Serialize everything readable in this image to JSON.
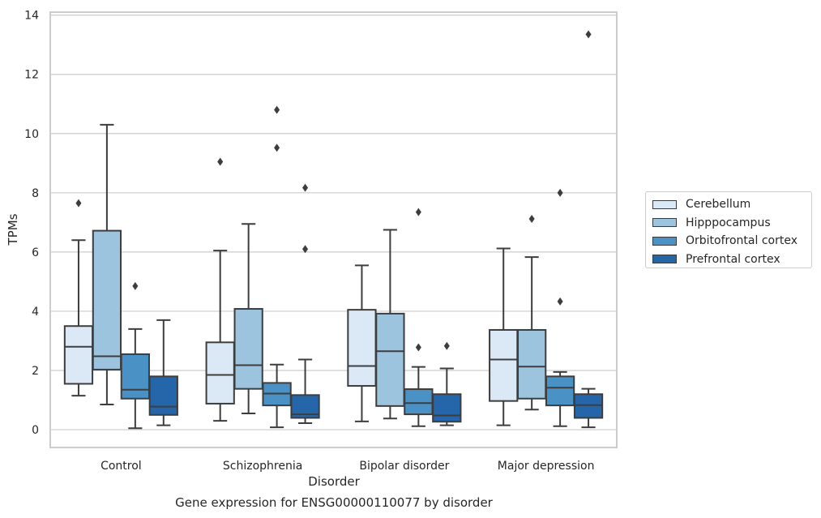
{
  "chart_data": {
    "type": "box",
    "xlabel": "Disorder",
    "ylabel": "TPMs",
    "caption": "Gene expression for ENSG00000110077 by disorder",
    "ylim": [
      -0.6,
      14.1
    ],
    "yticks": [
      0,
      2,
      4,
      6,
      8,
      10,
      12,
      14
    ],
    "grid": true,
    "legend_position": "right",
    "categories": [
      "Control",
      "Schizophrenia",
      "Bipolar disorder",
      "Major depression"
    ],
    "series": [
      {
        "name": "Cerebellum",
        "color": "#dbe9f6",
        "boxes": [
          {
            "whisker_low": 1.15,
            "q1": 1.55,
            "median": 2.8,
            "q3": 3.5,
            "whisker_high": 6.4,
            "outliers": [
              7.65
            ]
          },
          {
            "whisker_low": 0.3,
            "q1": 0.88,
            "median": 1.85,
            "q3": 2.95,
            "whisker_high": 6.05,
            "outliers": [
              9.05
            ]
          },
          {
            "whisker_low": 0.28,
            "q1": 1.48,
            "median": 2.15,
            "q3": 4.05,
            "whisker_high": 5.55,
            "outliers": []
          },
          {
            "whisker_low": 0.15,
            "q1": 0.97,
            "median": 2.37,
            "q3": 3.37,
            "whisker_high": 6.12,
            "outliers": []
          }
        ]
      },
      {
        "name": "Hipppocampus",
        "color": "#9dc4de",
        "boxes": [
          {
            "whisker_low": 0.85,
            "q1": 2.03,
            "median": 2.48,
            "q3": 6.72,
            "whisker_high": 10.3,
            "outliers": []
          },
          {
            "whisker_low": 0.55,
            "q1": 1.38,
            "median": 2.18,
            "q3": 4.08,
            "whisker_high": 6.95,
            "outliers": []
          },
          {
            "whisker_low": 0.38,
            "q1": 0.8,
            "median": 2.65,
            "q3": 3.92,
            "whisker_high": 6.75,
            "outliers": []
          },
          {
            "whisker_low": 0.68,
            "q1": 1.05,
            "median": 2.13,
            "q3": 3.37,
            "whisker_high": 5.83,
            "outliers": [
              7.12
            ]
          }
        ]
      },
      {
        "name": "Orbitofrontal cortex",
        "color": "#4a91c6",
        "boxes": [
          {
            "whisker_low": 0.05,
            "q1": 1.05,
            "median": 1.35,
            "q3": 2.55,
            "whisker_high": 3.4,
            "outliers": [
              4.85
            ]
          },
          {
            "whisker_low": 0.08,
            "q1": 0.82,
            "median": 1.22,
            "q3": 1.58,
            "whisker_high": 2.2,
            "outliers": [
              10.8,
              9.52
            ]
          },
          {
            "whisker_low": 0.12,
            "q1": 0.52,
            "median": 0.9,
            "q3": 1.37,
            "whisker_high": 2.12,
            "outliers": [
              2.78,
              7.35
            ]
          },
          {
            "whisker_low": 0.12,
            "q1": 0.82,
            "median": 1.42,
            "q3": 1.8,
            "whisker_high": 1.95,
            "outliers": [
              4.33,
              8.0
            ]
          }
        ]
      },
      {
        "name": "Prefrontal cortex",
        "color": "#2466a9",
        "boxes": [
          {
            "whisker_low": 0.15,
            "q1": 0.5,
            "median": 0.78,
            "q3": 1.8,
            "whisker_high": 3.7,
            "outliers": []
          },
          {
            "whisker_low": 0.22,
            "q1": 0.4,
            "median": 0.52,
            "q3": 1.17,
            "whisker_high": 2.37,
            "outliers": [
              8.17,
              6.1
            ]
          },
          {
            "whisker_low": 0.15,
            "q1": 0.27,
            "median": 0.48,
            "q3": 1.2,
            "whisker_high": 2.07,
            "outliers": [
              2.83
            ]
          },
          {
            "whisker_low": 0.08,
            "q1": 0.4,
            "median": 0.83,
            "q3": 1.2,
            "whisker_high": 1.38,
            "outliers": [
              13.35
            ]
          }
        ]
      }
    ]
  }
}
